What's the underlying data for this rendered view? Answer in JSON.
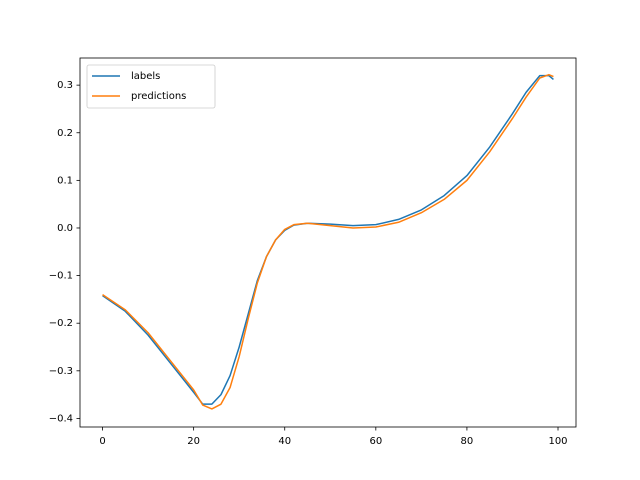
{
  "chart_data": {
    "type": "line",
    "x": [
      0,
      5,
      10,
      15,
      20,
      22,
      24,
      26,
      28,
      30,
      32,
      34,
      36,
      38,
      40,
      42,
      45,
      50,
      55,
      60,
      65,
      70,
      75,
      80,
      85,
      90,
      93,
      96,
      98,
      99
    ],
    "series": [
      {
        "name": "labels",
        "color": "#1f77b4",
        "values": [
          -0.142,
          -0.175,
          -0.225,
          -0.285,
          -0.345,
          -0.37,
          -0.37,
          -0.35,
          -0.31,
          -0.25,
          -0.18,
          -0.11,
          -0.06,
          -0.025,
          -0.005,
          0.006,
          0.01,
          0.008,
          0.005,
          0.007,
          0.018,
          0.038,
          0.068,
          0.11,
          0.17,
          0.24,
          0.285,
          0.32,
          0.32,
          0.312
        ]
      },
      {
        "name": "predictions",
        "color": "#ff7f0e",
        "values": [
          -0.14,
          -0.172,
          -0.22,
          -0.28,
          -0.34,
          -0.372,
          -0.38,
          -0.37,
          -0.335,
          -0.27,
          -0.19,
          -0.115,
          -0.06,
          -0.025,
          -0.003,
          0.007,
          0.01,
          0.005,
          0.0,
          0.002,
          0.012,
          0.032,
          0.06,
          0.1,
          0.16,
          0.23,
          0.275,
          0.315,
          0.322,
          0.318
        ]
      }
    ],
    "xlim": [
      -4.95,
      103.95
    ],
    "xticks": [
      0,
      20,
      40,
      60,
      80,
      100
    ],
    "ylim": [
      -0.418,
      0.357
    ],
    "yticks": [
      {
        "value": -0.4,
        "label": "−0.4"
      },
      {
        "value": -0.3,
        "label": "−0.3"
      },
      {
        "value": -0.2,
        "label": "−0.2"
      },
      {
        "value": -0.1,
        "label": "−0.1"
      },
      {
        "value": 0,
        "label": "0.0"
      },
      0.1,
      0.2,
      0.3
    ],
    "legend": "upper left"
  }
}
